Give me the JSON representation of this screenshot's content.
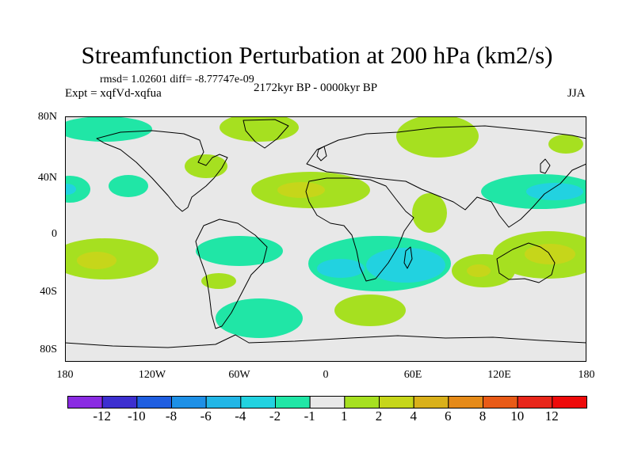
{
  "title": "Streamfunction Perturbation at 200 hPa (km2/s)",
  "stats_text": "rmsd= 1.02601 diff= -8.77747e-09",
  "experiment": "Expt = xqfVd-xqfua",
  "period": "2172kyr BP - 0000kyr BP",
  "season": "JJA",
  "lat_labels": [
    "80N",
    "40N",
    "0",
    "40S",
    "80S"
  ],
  "lon_labels": [
    "180",
    "120W",
    "60W",
    "0",
    "60E",
    "120E",
    "180"
  ],
  "colorbar": {
    "labels": [
      "-12",
      "-10",
      "-8",
      "-6",
      "-4",
      "-2",
      "-1",
      "1",
      "2",
      "4",
      "6",
      "8",
      "10",
      "12"
    ],
    "colors": [
      "#8a2be2",
      "#3d2fd0",
      "#1f5ee0",
      "#1e90e6",
      "#22b6e6",
      "#22d2e0",
      "#20e6a6",
      "#e8e8e8",
      "#a6e020",
      "#c6d61a",
      "#d9b01a",
      "#e58a18",
      "#e85a16",
      "#e8261a",
      "#ee0a0a"
    ]
  }
}
